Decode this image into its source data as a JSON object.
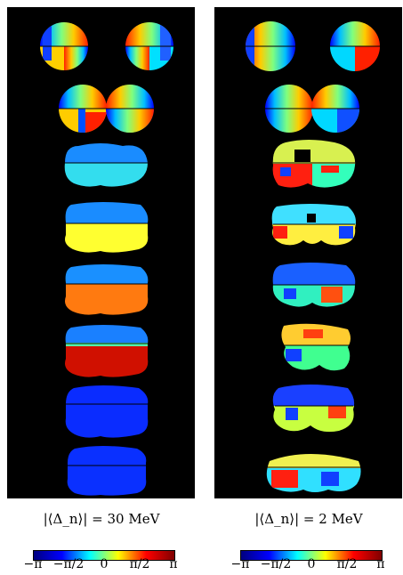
{
  "panels": [
    {
      "label": "|⟨Δ_n⟩| = 30 MeV"
    },
    {
      "label": "|⟨Δ_n⟩| = 2 MeV"
    }
  ],
  "colorbar": {
    "ticks": [
      "−π",
      "−π/2",
      "0",
      "π/2",
      "π"
    ],
    "colors": [
      "#00007f",
      "#0000ff",
      "#00ffff",
      "#ffff00",
      "#ff0000",
      "#7f0000"
    ]
  }
}
